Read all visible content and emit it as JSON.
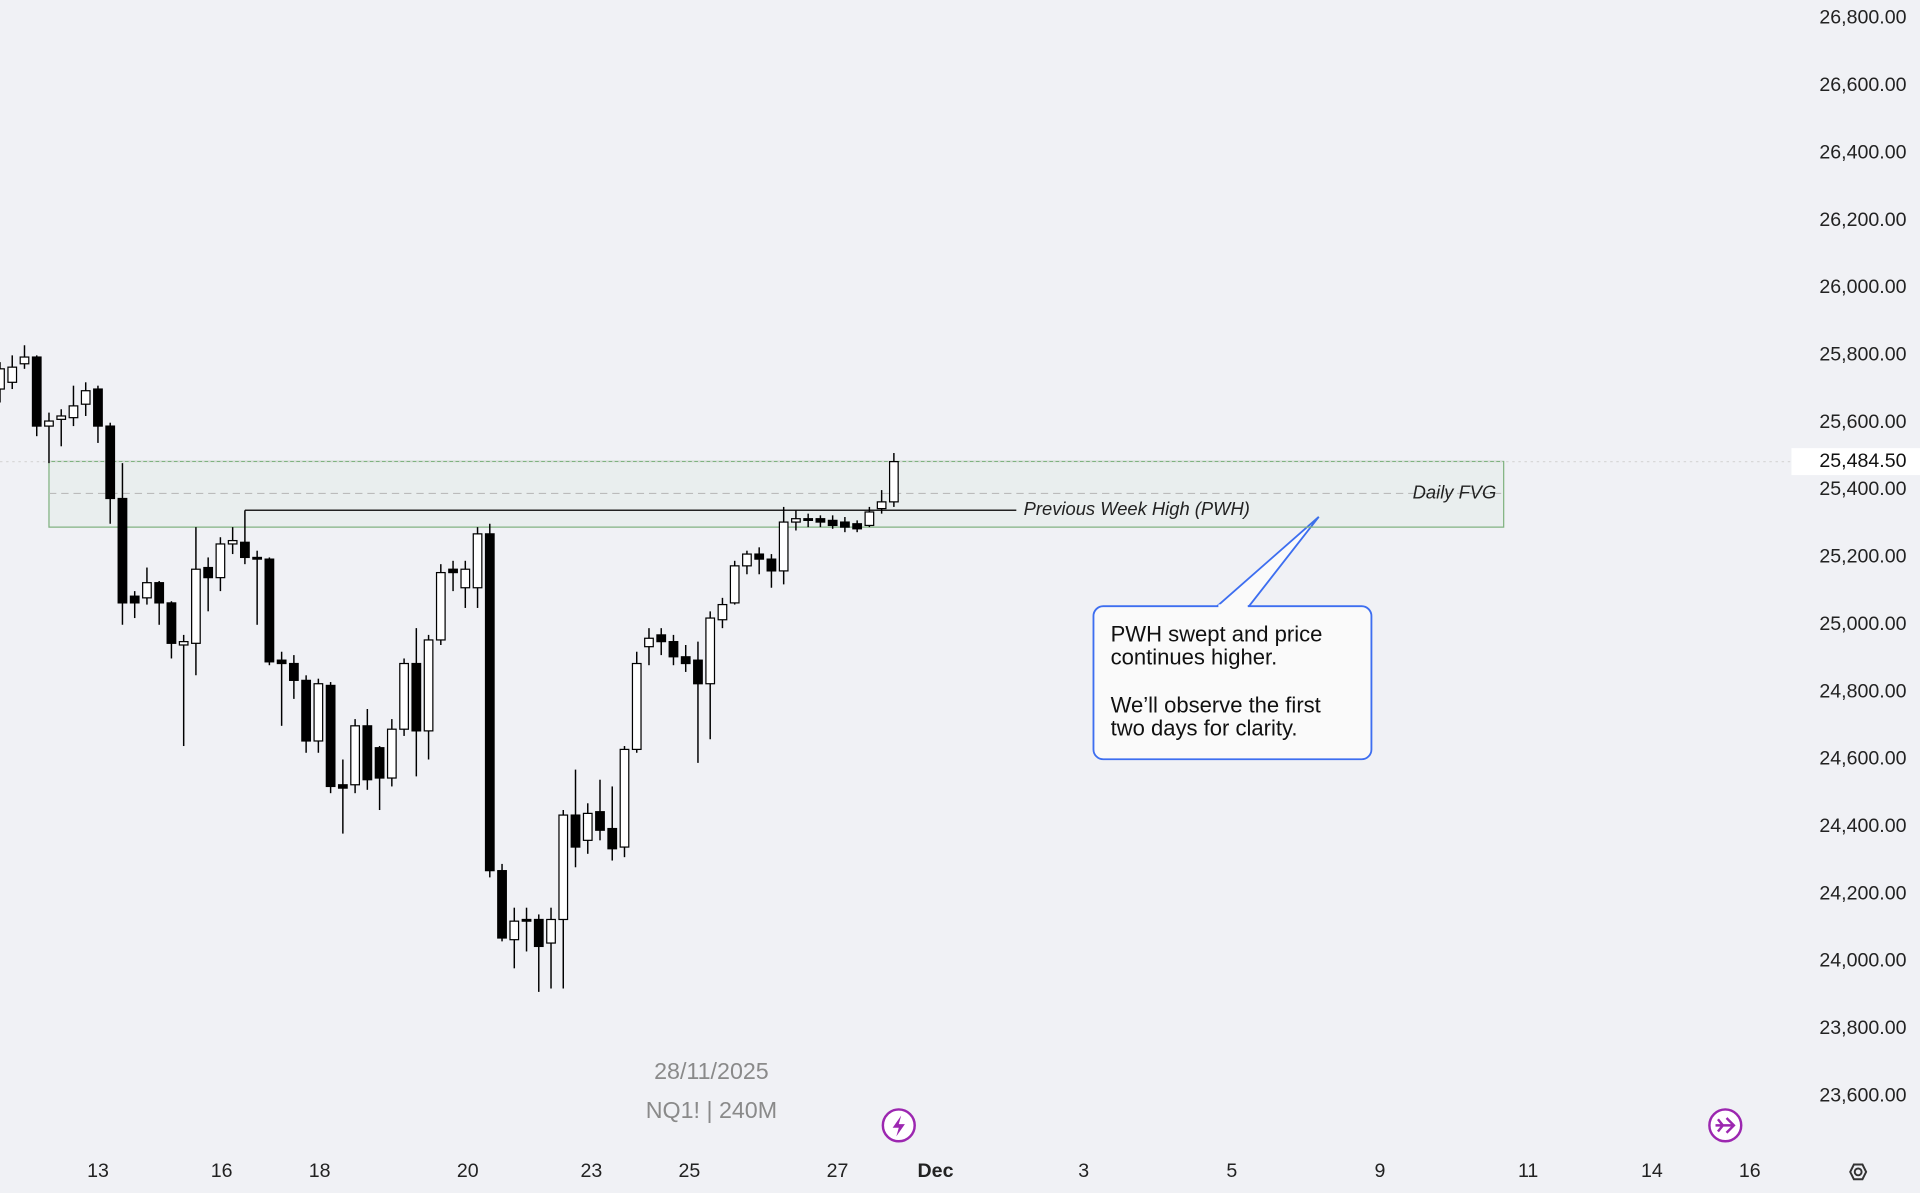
{
  "chart_data": {
    "type": "candlestick",
    "x": [
      0,
      1,
      2,
      3,
      4,
      5,
      6,
      7,
      8,
      9,
      10,
      11,
      12,
      13,
      14,
      15,
      16,
      17,
      18,
      19,
      20,
      21,
      22,
      23,
      24,
      25,
      26,
      27,
      28,
      29,
      30,
      31,
      32,
      33,
      34,
      35,
      36,
      37,
      38,
      39,
      40,
      41,
      42,
      43,
      44,
      45,
      46,
      47,
      48,
      49,
      50,
      51,
      52,
      53,
      54,
      55,
      56,
      57,
      58,
      59,
      60,
      61,
      62,
      63,
      64,
      65,
      66,
      67,
      68,
      69,
      70,
      71,
      72,
      73
    ],
    "open": [
      25700,
      25720,
      25775,
      25795,
      25590,
      25610,
      25615,
      25655,
      25700,
      25590,
      25375,
      25085,
      25080,
      25125,
      25065,
      24940,
      24945,
      25170,
      25140,
      25240,
      25245,
      25200,
      25195,
      24895,
      24885,
      24835,
      24655,
      24820,
      24525,
      24525,
      24700,
      24635,
      24545,
      24690,
      24885,
      24685,
      24955,
      25165,
      25110,
      25110,
      25270,
      24270,
      24065,
      24125,
      24125,
      24055,
      24125,
      24435,
      24360,
      24445,
      24395,
      24340,
      24630,
      24935,
      24970,
      24950,
      24905,
      24895,
      24825,
      25015,
      25065,
      25175,
      25210,
      25195,
      25160,
      25305,
      25315,
      25315,
      25310,
      25305,
      25300,
      25295,
      25345,
      25365
    ],
    "high": [
      25780,
      25800,
      25830,
      25800,
      25630,
      25640,
      25710,
      25720,
      25710,
      25600,
      25480,
      25100,
      25170,
      25130,
      25070,
      24970,
      25290,
      25200,
      25260,
      25290,
      25340,
      25220,
      25200,
      24920,
      24910,
      24850,
      24840,
      24830,
      24600,
      24720,
      24750,
      24640,
      24720,
      24900,
      24990,
      24970,
      25180,
      25190,
      25190,
      25290,
      25300,
      24290,
      24160,
      24160,
      24140,
      24160,
      24450,
      24570,
      24470,
      24540,
      24520,
      24640,
      24920,
      24990,
      24990,
      24970,
      24940,
      24950,
      25040,
      25080,
      25190,
      25220,
      25230,
      25210,
      25350,
      25340,
      25330,
      25325,
      25325,
      25320,
      25310,
      25350,
      25400,
      25510
    ],
    "low": [
      25660,
      25700,
      25760,
      25560,
      25480,
      25530,
      25590,
      25620,
      25540,
      25300,
      25000,
      25020,
      25060,
      25000,
      24900,
      24640,
      24850,
      25040,
      25100,
      25210,
      25180,
      25000,
      24880,
      24700,
      24780,
      24620,
      24620,
      24500,
      24380,
      24500,
      24510,
      24450,
      24520,
      24670,
      24550,
      24600,
      24940,
      25100,
      25050,
      25050,
      24250,
      24060,
      23980,
      24030,
      23910,
      23920,
      23920,
      24280,
      24320,
      24360,
      24300,
      24310,
      24620,
      24880,
      24910,
      24880,
      24860,
      24590,
      24660,
      24990,
      25060,
      25150,
      25150,
      25110,
      25120,
      25280,
      25290,
      25290,
      25285,
      25275,
      25275,
      25290,
      25330,
      25350
    ],
    "close": [
      25760,
      25765,
      25795,
      25590,
      25605,
      25620,
      25650,
      25695,
      25590,
      25375,
      25065,
      25065,
      25125,
      25065,
      24945,
      24950,
      25165,
      25140,
      25240,
      25250,
      25200,
      25195,
      24890,
      24885,
      24835,
      24655,
      24825,
      24520,
      24515,
      24700,
      24540,
      24545,
      24690,
      24885,
      24685,
      24955,
      25155,
      25155,
      25165,
      25270,
      24270,
      24070,
      24120,
      24120,
      24045,
      24125,
      24435,
      24340,
      24440,
      24390,
      24335,
      24630,
      24885,
      24960,
      24950,
      24905,
      24885,
      24825,
      25020,
      25060,
      25175,
      25210,
      25195,
      25160,
      25305,
      25315,
      25310,
      25305,
      25295,
      25290,
      25285,
      25335,
      25365,
      25484.5
    ],
    "xlim": [
      0,
      146
    ],
    "ylim": [
      23313,
      26855
    ],
    "xticks": [
      {
        "value": 8.0,
        "label": "13"
      },
      {
        "value": 18.1,
        "label": "16"
      },
      {
        "value": 26.1,
        "label": "18"
      },
      {
        "value": 38.2,
        "label": "20"
      },
      {
        "value": 48.3,
        "label": "23"
      },
      {
        "value": 56.3,
        "label": "25"
      },
      {
        "value": 68.4,
        "label": "27"
      },
      {
        "value": 76.4,
        "label": "Dec"
      },
      {
        "value": 88.5,
        "label": "3"
      },
      {
        "value": 100.6,
        "label": "5"
      },
      {
        "value": 112.7,
        "label": "9"
      },
      {
        "value": 124.8,
        "label": "11"
      },
      {
        "value": 134.9,
        "label": "14"
      },
      {
        "value": 142.9,
        "label": "16"
      }
    ],
    "yticks": [
      {
        "value": 26800,
        "label": "26,800.00"
      },
      {
        "value": 26600,
        "label": "26,600.00"
      },
      {
        "value": 26400,
        "label": "26,400.00"
      },
      {
        "value": 26200,
        "label": "26,200.00"
      },
      {
        "value": 26000,
        "label": "26,000.00"
      },
      {
        "value": 25800,
        "label": "25,800.00"
      },
      {
        "value": 25600,
        "label": "25,600.00"
      },
      {
        "value": 25400,
        "label": "25,400.00"
      },
      {
        "value": 25200,
        "label": "25,200.00"
      },
      {
        "value": 25000,
        "label": "25,000.00"
      },
      {
        "value": 24800,
        "label": "24,800.00"
      },
      {
        "value": 24600,
        "label": "24,600.00"
      },
      {
        "value": 24400,
        "label": "24,400.00"
      },
      {
        "value": 24200,
        "label": "24,200.00"
      },
      {
        "value": 24000,
        "label": "24,000.00"
      },
      {
        "value": 23800,
        "label": "23,800.00"
      },
      {
        "value": 23600,
        "label": "23,600.00"
      }
    ],
    "last_price": {
      "value": 25484.5,
      "label": "25,484.50"
    },
    "fvg": {
      "label": "Daily FVG",
      "high": 25485,
      "low": 25290,
      "mid": 25390,
      "from": 4,
      "to": 122.8
    },
    "pwh": {
      "label": "Previous Week High (PWH)",
      "value": 25340,
      "from": 20,
      "to": 83
    },
    "callout": {
      "lines": [
        "PWH swept and price",
        "continues higher.",
        "We’ll observe the first",
        "two days for clarity."
      ]
    },
    "watermark": {
      "date": "28/11/2025",
      "symbol": "NQ1! | 240M"
    }
  }
}
